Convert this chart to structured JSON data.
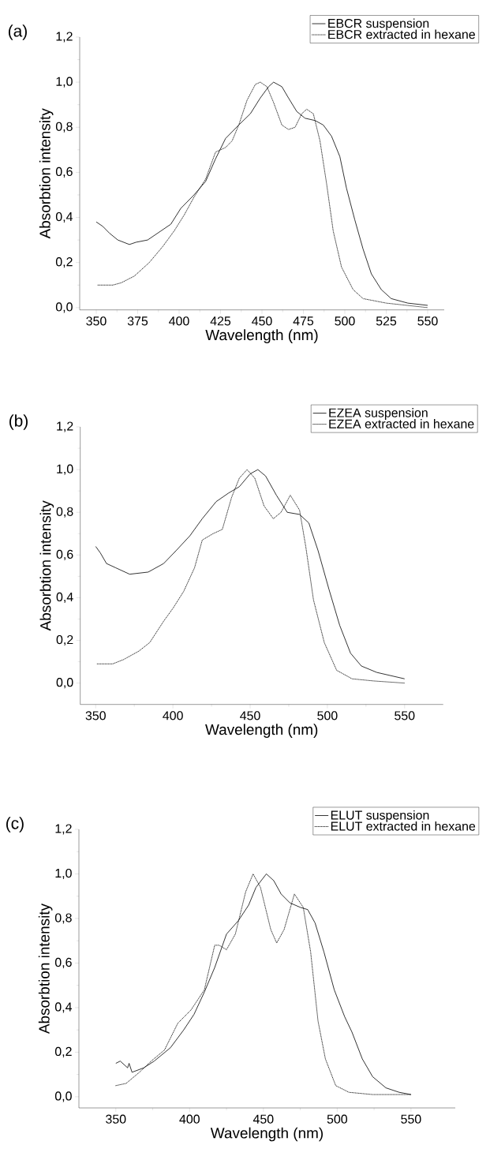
{
  "chart_data": [
    {
      "type": "line",
      "title": "(a)",
      "xlabel": "Wavelength (nm)",
      "ylabel": "Absorbtion intensity",
      "xlim": [
        340,
        560
      ],
      "ylim": [
        -0.01,
        1.2
      ],
      "xticks": [
        350,
        375,
        400,
        425,
        450,
        475,
        500,
        525,
        550
      ],
      "yticks": [
        {
          "value": 0,
          "label": "0,0"
        },
        {
          "value": 0.2,
          "label": "0,2"
        },
        {
          "value": 0.4,
          "label": "0,4"
        },
        {
          "value": 0.6,
          "label": "0,6"
        },
        {
          "value": 0.8,
          "label": "0,8"
        },
        {
          "value": 1.0,
          "label": "1,0"
        },
        {
          "value": 1.2,
          "label": "1,2"
        }
      ],
      "legend": "top right",
      "series": [
        {
          "name": "EBCR suspension",
          "color": "#000000",
          "line_style": "solid",
          "x": [
            350,
            354,
            358,
            363,
            370,
            374,
            381,
            389,
            395,
            401,
            409,
            416,
            422,
            428,
            436,
            443,
            449,
            454,
            457,
            462,
            466,
            471,
            476,
            482,
            487,
            492,
            497,
            501,
            506,
            511,
            516,
            522,
            528,
            538,
            550
          ],
          "values": [
            0.38,
            0.36,
            0.33,
            0.3,
            0.28,
            0.29,
            0.3,
            0.34,
            0.37,
            0.44,
            0.5,
            0.56,
            0.66,
            0.75,
            0.81,
            0.86,
            0.93,
            0.98,
            1.0,
            0.98,
            0.93,
            0.87,
            0.84,
            0.83,
            0.81,
            0.76,
            0.67,
            0.53,
            0.39,
            0.26,
            0.15,
            0.08,
            0.04,
            0.02,
            0.01
          ]
        },
        {
          "name": "EBCR extracted in hexane",
          "color": "#000000",
          "line_style": "dotted",
          "x": [
            351,
            360,
            365,
            373,
            382,
            390,
            397,
            403,
            409,
            416,
            422,
            428,
            432,
            436,
            441,
            446,
            449,
            453,
            457,
            462,
            466,
            470,
            474,
            477,
            481,
            485,
            489,
            493,
            498,
            505,
            511,
            525,
            550
          ],
          "values": [
            0.1,
            0.1,
            0.11,
            0.14,
            0.2,
            0.27,
            0.34,
            0.41,
            0.49,
            0.57,
            0.69,
            0.71,
            0.74,
            0.81,
            0.92,
            0.99,
            1.0,
            0.98,
            0.91,
            0.81,
            0.79,
            0.8,
            0.86,
            0.88,
            0.86,
            0.74,
            0.55,
            0.34,
            0.18,
            0.08,
            0.04,
            0.02,
            0.0
          ]
        }
      ]
    },
    {
      "type": "line",
      "title": "(b)",
      "xlabel": "Wavelength (nm)",
      "ylabel": "Absorbtion intensity",
      "xlim": [
        340,
        575
      ],
      "ylim": [
        -0.1,
        1.2
      ],
      "xticks": [
        350,
        400,
        450,
        500,
        550
      ],
      "yticks": [
        {
          "value": 0,
          "label": "0,0"
        },
        {
          "value": 0.2,
          "label": "0,2"
        },
        {
          "value": 0.4,
          "label": "0,4"
        },
        {
          "value": 0.6,
          "label": "0,6"
        },
        {
          "value": 0.8,
          "label": "0,8"
        },
        {
          "value": 1.0,
          "label": "1,0"
        },
        {
          "value": 1.2,
          "label": "1,2"
        }
      ],
      "legend": "top right",
      "series": [
        {
          "name": "EZEA suspension",
          "color": "#000000",
          "line_style": "solid",
          "x": [
            350,
            353,
            357,
            363,
            372,
            384,
            394,
            402,
            411,
            419,
            428,
            436,
            443,
            450,
            455,
            460,
            467,
            474,
            482,
            488,
            494,
            501,
            508,
            515,
            522,
            532,
            550
          ],
          "values": [
            0.64,
            0.61,
            0.56,
            0.54,
            0.51,
            0.52,
            0.56,
            0.62,
            0.69,
            0.77,
            0.85,
            0.89,
            0.92,
            0.98,
            1.0,
            0.97,
            0.88,
            0.8,
            0.79,
            0.75,
            0.62,
            0.44,
            0.27,
            0.14,
            0.08,
            0.05,
            0.02
          ]
        },
        {
          "name": "EZEA extracted in hexane",
          "color": "#000000",
          "line_style": "dotted",
          "x": [
            351,
            361,
            368,
            378,
            385,
            394,
            400,
            407,
            414,
            419,
            426,
            432,
            438,
            443,
            448,
            453,
            459,
            465,
            470,
            476,
            482,
            486,
            491,
            498,
            506,
            516,
            530,
            550
          ],
          "values": [
            0.09,
            0.09,
            0.11,
            0.15,
            0.19,
            0.29,
            0.35,
            0.43,
            0.54,
            0.67,
            0.7,
            0.72,
            0.87,
            0.96,
            1.0,
            0.96,
            0.83,
            0.77,
            0.8,
            0.88,
            0.81,
            0.64,
            0.39,
            0.19,
            0.06,
            0.02,
            0.01,
            0.0
          ]
        }
      ]
    },
    {
      "type": "line",
      "title": "(c)",
      "xlabel": "Wavelength (nm)",
      "ylabel": "Absorbtion intensity",
      "xlim": [
        325,
        580
      ],
      "ylim": [
        -0.05,
        1.2
      ],
      "xticks": [
        350,
        400,
        450,
        500,
        550
      ],
      "yticks": [
        {
          "value": 0,
          "label": "0,0"
        },
        {
          "value": 0.2,
          "label": "0,2"
        },
        {
          "value": 0.4,
          "label": "0,4"
        },
        {
          "value": 0.6,
          "label": "0,6"
        },
        {
          "value": 0.8,
          "label": "0,8"
        },
        {
          "value": 1.0,
          "label": "1,0"
        },
        {
          "value": 1.2,
          "label": "1,2"
        }
      ],
      "legend": "top right",
      "series": [
        {
          "name": "ELUT suspension",
          "color": "#000000",
          "line_style": "solid",
          "x": [
            350,
            353,
            358,
            359,
            361,
            369,
            376,
            387,
            396,
            403,
            410,
            417,
            425,
            433,
            440,
            445,
            452,
            457,
            462,
            468,
            475,
            480,
            485,
            491,
            498,
            505,
            510,
            517,
            524,
            533,
            542,
            550
          ],
          "values": [
            0.15,
            0.16,
            0.13,
            0.15,
            0.11,
            0.13,
            0.16,
            0.22,
            0.3,
            0.37,
            0.47,
            0.58,
            0.73,
            0.79,
            0.86,
            0.94,
            1.0,
            0.97,
            0.91,
            0.87,
            0.85,
            0.84,
            0.78,
            0.65,
            0.48,
            0.36,
            0.29,
            0.17,
            0.09,
            0.04,
            0.02,
            0.01
          ]
        },
        {
          "name": "ELUT extracted in hexane",
          "color": "#000000",
          "line_style": "dotted",
          "x": [
            350,
            357,
            366,
            374,
            383,
            392,
            401,
            410,
            417,
            420,
            425,
            431,
            438,
            443,
            448,
            455,
            459,
            464,
            471,
            477,
            482,
            487,
            492,
            499,
            508,
            524,
            550
          ],
          "values": [
            0.05,
            0.06,
            0.11,
            0.16,
            0.21,
            0.33,
            0.39,
            0.48,
            0.68,
            0.68,
            0.66,
            0.73,
            0.92,
            1.0,
            0.94,
            0.75,
            0.69,
            0.75,
            0.91,
            0.85,
            0.65,
            0.34,
            0.17,
            0.05,
            0.02,
            0.01,
            0.01
          ]
        }
      ]
    }
  ]
}
